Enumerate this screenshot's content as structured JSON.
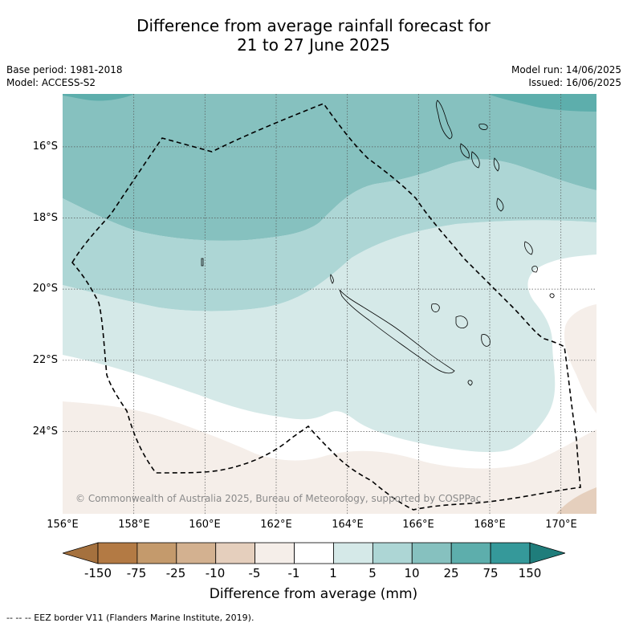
{
  "title_line1": "Difference from average rainfall forecast for",
  "title_line2": "21 to 27 June 2025",
  "meta_left": [
    "Base period: 1981-2018",
    "Model: ACCESS-S2"
  ],
  "meta_right": [
    "Model run: 14/06/2025",
    "Issued: 16/06/2025"
  ],
  "copyright": "© Commonwealth of Australia 2025, Bureau of Meteorology, supported by COSPPac",
  "footnote": "--  --  -- EEZ border V11 (Flanders Marine Institute, 2019).",
  "chart_data": {
    "type": "heatmap",
    "title": "Difference from average rainfall forecast for 21 to 27 June 2025",
    "xlabel": "",
    "ylabel": "",
    "colorbar_label": "Difference from average (mm)",
    "xlim": [
      156,
      171
    ],
    "ylim": [
      -26.2,
      -14.4
    ],
    "x_ticks": [
      "156°E",
      "158°E",
      "160°E",
      "162°E",
      "164°E",
      "166°E",
      "168°E",
      "170°E"
    ],
    "y_ticks": [
      "16°S",
      "18°S",
      "20°S",
      "22°S",
      "24°S"
    ],
    "grid": true,
    "colorbar": {
      "tick_labels": [
        "-150",
        "-75",
        "-25",
        "-10",
        "-5",
        "-1",
        "1",
        "5",
        "10",
        "25",
        "75",
        "150"
      ],
      "colors": [
        "#a5713e",
        "#b37a44",
        "#c49a6c",
        "#d3b190",
        "#e5cfbd",
        "#f5eee9",
        "#ffffff",
        "#d5e9e8",
        "#add6d5",
        "#86c1bf",
        "#5daeac",
        "#35999a",
        "#1f7d7b"
      ]
    },
    "overlays": [
      "EEZ border"
    ]
  }
}
